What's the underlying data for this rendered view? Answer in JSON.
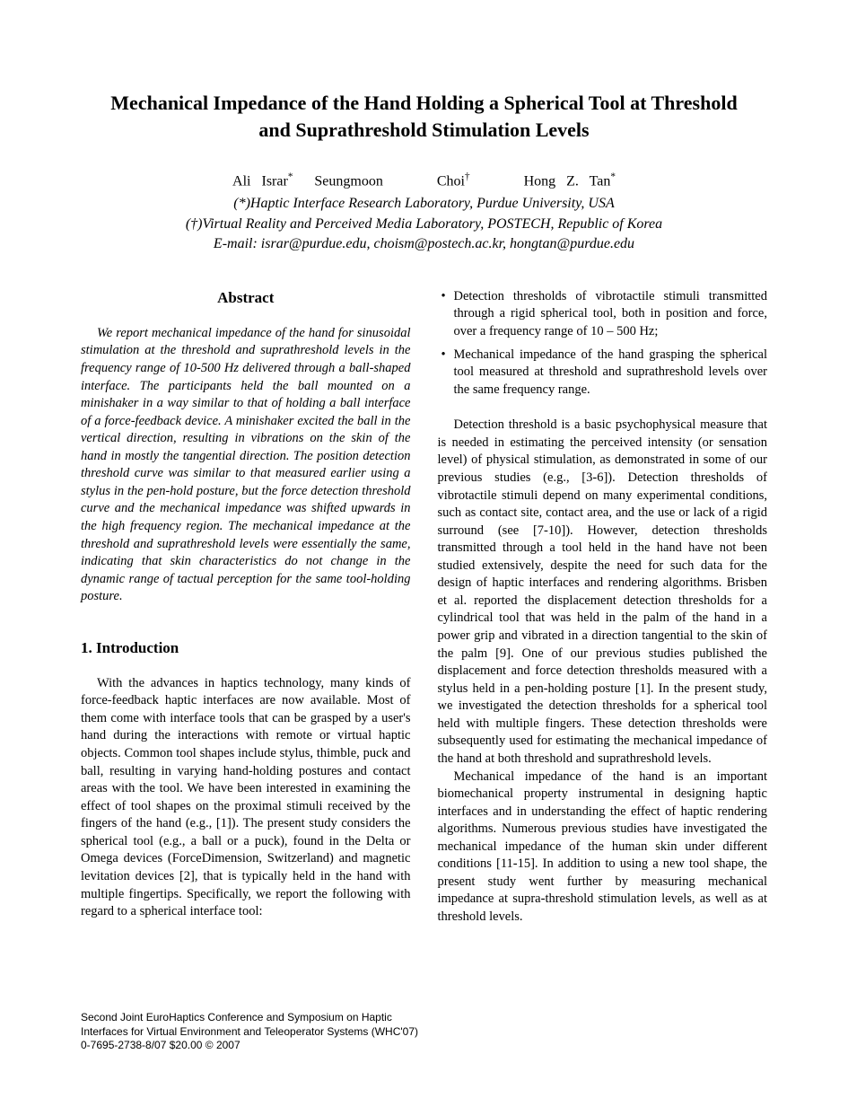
{
  "title": "Mechanical Impedance of the Hand Holding a Spherical Tool at Threshold and Suprathreshold Stimulation Levels",
  "authors_html": "Ali Israr<span class=\"sup\">*</span>&nbsp;&nbsp;Seungmoon&nbsp;&nbsp;&nbsp;&nbsp;&nbsp;Choi<span class=\"sup\">†</span>&nbsp;&nbsp;&nbsp;&nbsp;&nbsp;Hong Z. Tan<span class=\"sup\">*</span>",
  "affil1": "(*)Haptic Interface Research Laboratory, Purdue University, USA",
  "affil2": "(†)Virtual Reality and Perceived Media Laboratory, POSTECH, Republic of Korea",
  "email": "E-mail: israr@purdue.edu, choism@postech.ac.kr, hongtan@purdue.edu",
  "abstract_heading": "Abstract",
  "abstract_body": "We report mechanical impedance of the hand for sinusoidal stimulation at the threshold and suprathreshold levels in the frequency range of 10-500 Hz delivered through a ball-shaped interface. The participants held the ball mounted on a minishaker in a way similar to that of holding a ball interface of a force-feedback device. A minishaker excited the ball in the vertical direction, resulting in vibrations on the skin of the hand in mostly the tangential direction. The position detection threshold curve was similar to that measured earlier using a stylus in the pen-hold posture, but the force detection threshold curve and the mechanical impedance was shifted upwards in the high frequency region. The mechanical impedance at the threshold and suprathreshold levels were essentially the same, indicating that skin characteristics do not change in the dynamic range of tactual perception for the same tool-holding posture.",
  "section1_heading": "1. Introduction",
  "intro_para": "With the advances in haptics technology, many kinds of force-feedback haptic interfaces are now available. Most of them come with interface tools that can be grasped by a user's hand during the interactions with remote or virtual haptic objects. Common tool shapes include stylus, thimble, puck and ball, resulting in varying hand-holding postures and contact areas with the tool.  We have been interested in examining the effect of tool shapes on the proximal stimuli received by the fingers of the hand (e.g., [1]).  The present study considers the spherical tool (e.g., a ball or a puck), found in the Delta or Omega devices (ForceDimension, Switzerland) and magnetic levitation devices [2], that is typically held in the hand with multiple fingertips. Specifically, we report the following with regard to a spherical interface tool:",
  "bullet1": "Detection thresholds of vibrotactile stimuli transmitted through a rigid spherical tool, both in position and force, over a frequency range of 10 – 500 Hz;",
  "bullet2": "Mechanical impedance of the hand grasping the spherical tool measured at threshold and suprathreshold levels over the same frequency range.",
  "right_para1": "Detection threshold is a basic psychophysical measure that is needed in estimating the perceived intensity (or sensation level) of physical stimulation, as demonstrated in some of our previous studies (e.g., [3-6]). Detection thresholds of vibrotactile stimuli depend on many experimental conditions, such as contact site, contact area, and the use or lack of a rigid surround (see [7-10]). However, detection thresholds transmitted through a tool held in the hand have not been studied extensively, despite the need for such data for the design of haptic interfaces and rendering algorithms. Brisben et al. reported the displacement detection thresholds for a cylindrical tool that was held in the palm of the hand in a power grip and vibrated in a direction tangential to the skin of the palm [9]. One of our previous studies published the displacement and force detection thresholds measured with a stylus held in a pen-holding posture [1]. In the present study, we investigated the detection thresholds for a spherical tool held with multiple fingers. These detection thresholds were subsequently used for estimating the mechanical impedance of the hand at both threshold and suprathreshold levels.",
  "right_para2": "Mechanical impedance of the hand is an important biomechanical property instrumental in designing haptic interfaces and in understanding the effect of haptic rendering algorithms. Numerous previous studies have investigated the mechanical impedance of the human skin under different conditions [11-15]. In addition to using a new tool shape, the present study went further by measuring mechanical impedance at supra-threshold stimulation levels, as well as at threshold levels.",
  "footer_line1": "Second Joint EuroHaptics Conference and Symposium on Haptic",
  "footer_line2": "Interfaces for Virtual Environment and Teleoperator Systems (WHC'07)",
  "footer_line3": "0-7695-2738-8/07 $20.00  © 2007"
}
